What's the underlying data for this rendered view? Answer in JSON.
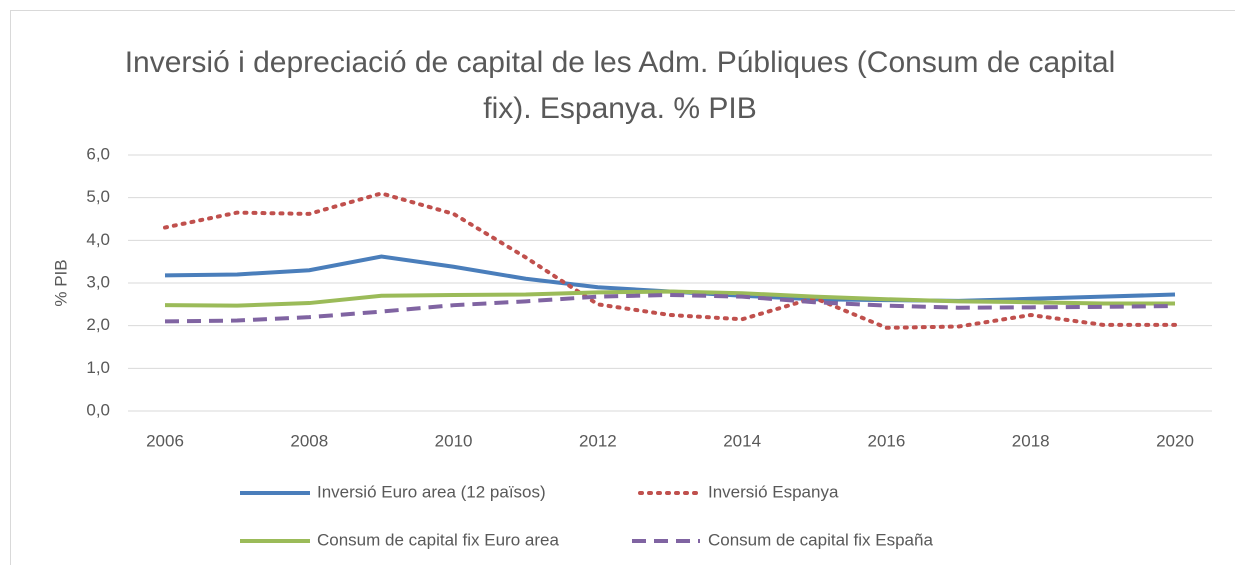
{
  "chart_data": {
    "type": "line",
    "title": "Inversió i depreciació de capital de les Adm. Públiques (Consum de capital fix). Espanya. % PIB",
    "y_label": "% PIB",
    "x": [
      2006,
      2007,
      2008,
      2009,
      2010,
      2011,
      2012,
      2013,
      2014,
      2015,
      2016,
      2017,
      2018,
      2019,
      2020
    ],
    "xlim": [
      2006,
      2020
    ],
    "xticks": [
      2006,
      2008,
      2010,
      2012,
      2014,
      2016,
      2018,
      2020
    ],
    "ylim": [
      0,
      6
    ],
    "yticks": [
      {
        "value": 0,
        "label": "0,0"
      },
      {
        "value": 1,
        "label": "1,0"
      },
      {
        "value": 2,
        "label": "2,0"
      },
      {
        "value": 3,
        "label": "3,0"
      },
      {
        "value": 4,
        "label": "4,0"
      },
      {
        "value": 5,
        "label": "5,0"
      },
      {
        "value": 6,
        "label": "6,0"
      }
    ],
    "grid": true,
    "legend": "bottom",
    "series": [
      {
        "name": "Inversió Euro area (12 països)",
        "color": "#4a7ebb",
        "line_style": "solid",
        "values": [
          3.18,
          3.2,
          3.3,
          3.62,
          3.38,
          3.1,
          2.9,
          2.8,
          2.7,
          2.62,
          2.6,
          2.58,
          2.63,
          2.68,
          2.73
        ]
      },
      {
        "name": "Inversió Espanya",
        "color": "#c0504d",
        "line_style": "dotted",
        "values": [
          4.3,
          4.65,
          4.62,
          5.1,
          4.62,
          3.6,
          2.5,
          2.25,
          2.15,
          2.65,
          1.95,
          1.98,
          2.25,
          2.02,
          2.02
        ]
      },
      {
        "name": "Consum de capital fix Euro area",
        "color": "#9bbb59",
        "line_style": "solid",
        "values": [
          2.48,
          2.47,
          2.53,
          2.7,
          2.72,
          2.73,
          2.78,
          2.8,
          2.76,
          2.68,
          2.62,
          2.57,
          2.55,
          2.52,
          2.52
        ]
      },
      {
        "name": "Consum de capital fix España",
        "color": "#8064a2",
        "line_style": "dashed",
        "values": [
          2.1,
          2.12,
          2.2,
          2.33,
          2.48,
          2.57,
          2.68,
          2.72,
          2.68,
          2.55,
          2.47,
          2.42,
          2.43,
          2.44,
          2.46
        ]
      }
    ]
  }
}
